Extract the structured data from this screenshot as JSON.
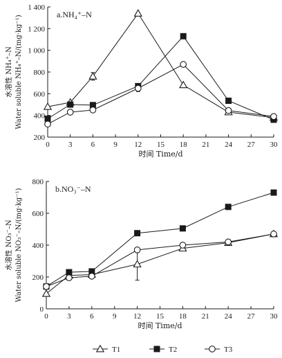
{
  "chart_data": [
    {
      "type": "line",
      "panel_label": "a.NH₄⁺–N",
      "xlabel": "时间 Time/d",
      "ylabel_line1": "水溶性 NH₄⁺–N",
      "ylabel_line2": "Water soluble NH₄⁺–N/(mg·kg⁻¹)",
      "xlim": [
        0,
        30
      ],
      "ylim": [
        200,
        1400
      ],
      "xticks": [
        0,
        3,
        6,
        9,
        12,
        15,
        18,
        21,
        24,
        27,
        30
      ],
      "yticks": [
        200,
        400,
        600,
        800,
        1000,
        1200,
        1400
      ],
      "ytick_labels": [
        "200",
        "400",
        "600",
        "800",
        "1 000",
        "1 200",
        "1 400"
      ],
      "series": [
        {
          "name": "T1",
          "marker": "triangle-open",
          "x": [
            0,
            3,
            6,
            12,
            18,
            24,
            30
          ],
          "y": [
            480,
            520,
            760,
            1340,
            680,
            430,
            380
          ],
          "err": [
            0,
            0,
            35,
            0,
            0,
            0,
            0
          ]
        },
        {
          "name": "T2",
          "marker": "square-filled",
          "x": [
            0,
            3,
            6,
            12,
            18,
            24,
            30
          ],
          "y": [
            370,
            500,
            495,
            670,
            1130,
            535,
            360
          ],
          "err": [
            0,
            0,
            0,
            0,
            0,
            0,
            0
          ]
        },
        {
          "name": "T3",
          "marker": "circle-open",
          "x": [
            0,
            3,
            6,
            12,
            18,
            24,
            30
          ],
          "y": [
            320,
            430,
            450,
            650,
            870,
            445,
            390
          ],
          "err": [
            0,
            0,
            0,
            30,
            0,
            0,
            0
          ]
        }
      ]
    },
    {
      "type": "line",
      "panel_label": "b.NO₃⁻–N",
      "xlabel": "时间 Time/d",
      "ylabel_line1": "水溶性 NO₃⁻–N",
      "ylabel_line2": "Water soluble NO₃⁻–N/(mg·kg⁻¹)",
      "xlim": [
        0,
        30
      ],
      "ylim": [
        0,
        800
      ],
      "xticks": [
        0,
        3,
        6,
        9,
        12,
        15,
        18,
        21,
        24,
        27,
        30
      ],
      "yticks": [
        0,
        200,
        400,
        600,
        800
      ],
      "ytick_labels": [
        "0",
        "200",
        "400",
        "600",
        "800"
      ],
      "series": [
        {
          "name": "T1",
          "marker": "triangle-open",
          "x": [
            0,
            3,
            6,
            12,
            18,
            24,
            30
          ],
          "y": [
            95,
            210,
            215,
            280,
            380,
            415,
            470
          ],
          "err": [
            0,
            0,
            0,
            100,
            0,
            0,
            0
          ]
        },
        {
          "name": "T2",
          "marker": "square-filled",
          "x": [
            0,
            3,
            6,
            12,
            18,
            24,
            30
          ],
          "y": [
            140,
            230,
            235,
            475,
            505,
            640,
            730
          ],
          "err": [
            0,
            0,
            0,
            0,
            0,
            0,
            0
          ]
        },
        {
          "name": "T3",
          "marker": "circle-open",
          "x": [
            0,
            3,
            6,
            12,
            18,
            24,
            30
          ],
          "y": [
            140,
            195,
            205,
            370,
            400,
            420,
            470
          ],
          "err": [
            0,
            0,
            0,
            0,
            0,
            0,
            0
          ]
        }
      ]
    }
  ],
  "legend": {
    "position": "bottom-center",
    "items": [
      {
        "name": "T1",
        "marker": "triangle-open"
      },
      {
        "name": "T2",
        "marker": "square-filled"
      },
      {
        "name": "T3",
        "marker": "circle-open"
      }
    ]
  }
}
